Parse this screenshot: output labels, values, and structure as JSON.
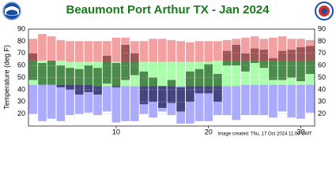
{
  "chart_data": {
    "type": "climate-bands",
    "title": "Beaumont Port Arthur TX - Jan 2024",
    "y_label": "Temperature (deg F)",
    "footnote": "Image created: Thu, 17 Oct 2024 11:00 GMT",
    "x": [
      1,
      2,
      3,
      4,
      5,
      6,
      7,
      8,
      9,
      10,
      11,
      12,
      13,
      14,
      15,
      16,
      17,
      18,
      19,
      20,
      21,
      22,
      23,
      24,
      25,
      26,
      27,
      28,
      29,
      30,
      31
    ],
    "xlim": [
      0.5,
      31.5
    ],
    "xticks": [
      10,
      20,
      30
    ],
    "ylim": [
      10,
      90
    ],
    "yticks": [
      20,
      30,
      40,
      50,
      60,
      70,
      80,
      90
    ],
    "grid": true,
    "record_high": [
      82,
      86,
      84,
      81,
      80,
      80,
      80,
      80,
      80,
      83,
      83,
      80,
      80,
      82,
      82,
      81,
      80,
      79,
      80,
      80,
      80,
      81,
      82,
      83,
      84,
      82,
      83,
      84,
      82,
      82,
      81
    ],
    "normal_high": [
      64,
      64,
      64,
      64,
      63,
      63,
      63,
      63,
      63,
      63,
      63,
      63,
      63,
      63,
      63,
      63,
      63,
      63,
      63,
      63,
      64,
      64,
      64,
      64,
      64,
      64,
      64,
      64,
      64,
      64,
      64
    ],
    "normal_low": [
      44,
      44,
      44,
      44,
      44,
      44,
      44,
      43,
      43,
      43,
      43,
      43,
      43,
      43,
      43,
      43,
      43,
      43,
      43,
      43,
      43,
      43,
      43,
      44,
      44,
      44,
      44,
      44,
      44,
      44,
      44
    ],
    "record_low": [
      20,
      14,
      16,
      14,
      19,
      20,
      21,
      19,
      22,
      13,
      14,
      14,
      20,
      17,
      22,
      19,
      12,
      12,
      14,
      14,
      19,
      19,
      15,
      19,
      19,
      19,
      17,
      22,
      17,
      16,
      21
    ],
    "actual_high": [
      70,
      62,
      64,
      60,
      58,
      57,
      60,
      58,
      68,
      62,
      77,
      70,
      55,
      50,
      43,
      48,
      42,
      55,
      57,
      61,
      53,
      72,
      77,
      70,
      74,
      73,
      66,
      72,
      73,
      75,
      76
    ],
    "actual_low": [
      48,
      44,
      44,
      42,
      40,
      36,
      38,
      36,
      45,
      42,
      48,
      52,
      28,
      30,
      25,
      29,
      22,
      30,
      37,
      37,
      30,
      60,
      60,
      55,
      62,
      58,
      48,
      48,
      50,
      47,
      53
    ],
    "colors": {
      "record_high": "#f4a0a0",
      "normal": "#aaffaa",
      "record_low": "#aaaaff",
      "actual_high": "#9e5555",
      "actual_normal": "#4a8a4a",
      "actual_low": "#44447f",
      "grid": "#bbbbbb"
    }
  }
}
